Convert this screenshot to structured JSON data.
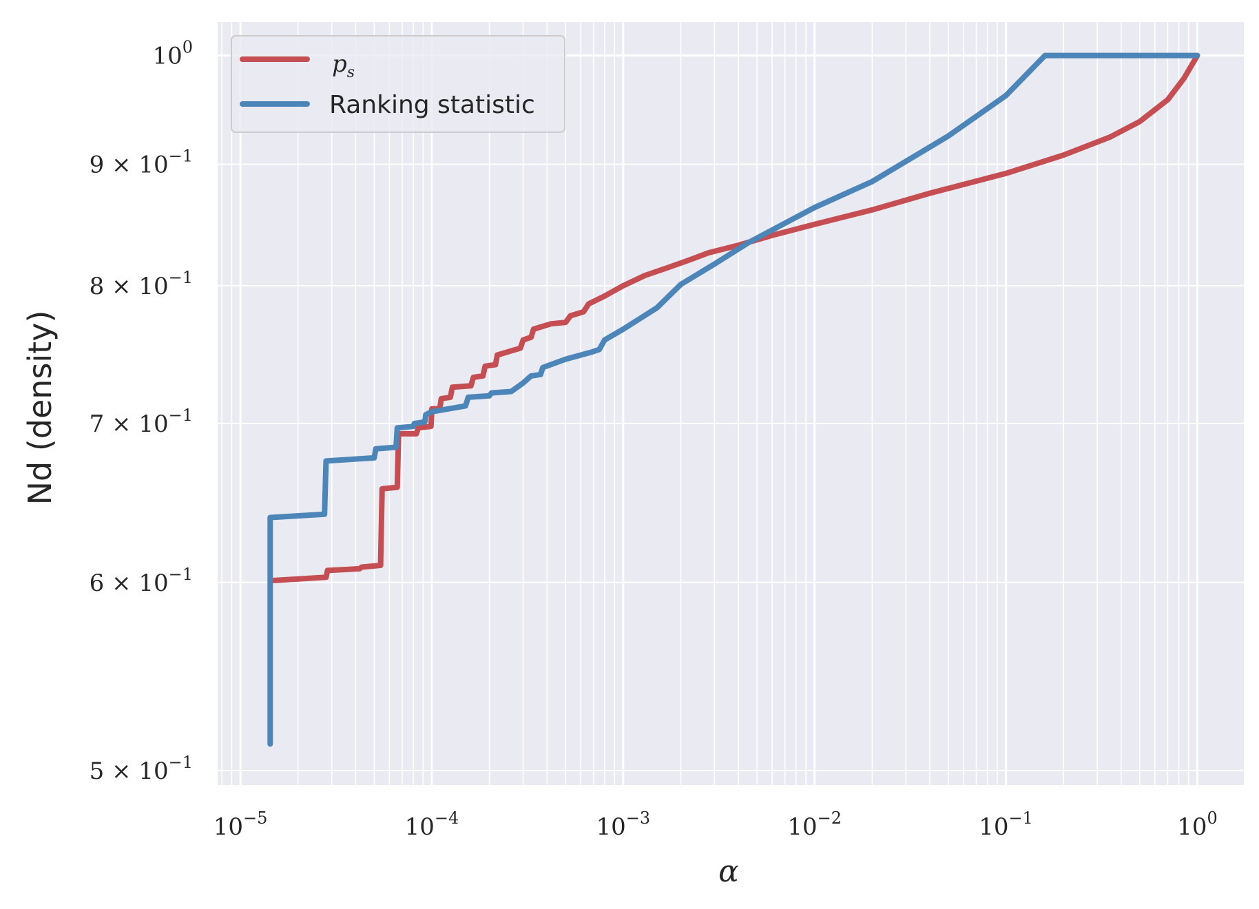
{
  "chart_data": {
    "type": "line",
    "xscale": "log",
    "yscale": "log",
    "xlim": [
      7.6e-06,
      1.75
    ],
    "ylim": [
      0.493,
      1.033
    ],
    "xlabel": "α",
    "ylabel": "Nd (density)",
    "grid": true,
    "legend_position": "top-left",
    "x_ticks": [
      {
        "value": 1e-05,
        "base": "10",
        "exp": "−5"
      },
      {
        "value": 0.0001,
        "base": "10",
        "exp": "−4"
      },
      {
        "value": 0.001,
        "base": "10",
        "exp": "−3"
      },
      {
        "value": 0.01,
        "base": "10",
        "exp": "−2"
      },
      {
        "value": 0.1,
        "base": "10",
        "exp": "−1"
      },
      {
        "value": 1,
        "base": "10",
        "exp": "0"
      }
    ],
    "y_ticks": [
      {
        "value": 1.0,
        "base": "10",
        "exp": "0"
      },
      {
        "value": 0.9,
        "base": "9 × 10",
        "exp": "−1"
      },
      {
        "value": 0.8,
        "base": "8 × 10",
        "exp": "−1"
      },
      {
        "value": 0.7,
        "base": "7 × 10",
        "exp": "−1"
      },
      {
        "value": 0.6,
        "base": "6 × 10",
        "exp": "−1"
      },
      {
        "value": 0.5,
        "base": "5 × 10",
        "exp": "−1"
      }
    ],
    "series": [
      {
        "name_base": "p",
        "name_sub": "s",
        "color": "#c44e52",
        "points": [
          [
            1.43e-05,
            0.601
          ],
          [
            2.8e-05,
            0.603
          ],
          [
            2.85e-05,
            0.607
          ],
          [
            4.2e-05,
            0.608
          ],
          [
            4.3e-05,
            0.609
          ],
          [
            5.4e-05,
            0.61
          ],
          [
            5.5e-05,
            0.657
          ],
          [
            6.6e-05,
            0.658
          ],
          [
            6.7e-05,
            0.693
          ],
          [
            8.3e-05,
            0.693
          ],
          [
            8.5e-05,
            0.697
          ],
          [
            9.9e-05,
            0.698
          ],
          [
            0.0001,
            0.71
          ],
          [
            0.00011,
            0.71
          ],
          [
            0.000112,
            0.717
          ],
          [
            0.000125,
            0.718
          ],
          [
            0.000128,
            0.725
          ],
          [
            0.00016,
            0.726
          ],
          [
            0.000165,
            0.732
          ],
          [
            0.000185,
            0.733
          ],
          [
            0.00019,
            0.74
          ],
          [
            0.000215,
            0.741
          ],
          [
            0.00022,
            0.748
          ],
          [
            0.00029,
            0.753
          ],
          [
            0.0003,
            0.759
          ],
          [
            0.00033,
            0.761
          ],
          [
            0.00034,
            0.767
          ],
          [
            0.00042,
            0.771
          ],
          [
            0.0005,
            0.772
          ],
          [
            0.00053,
            0.777
          ],
          [
            0.00062,
            0.78
          ],
          [
            0.00066,
            0.786
          ],
          [
            0.0008,
            0.792
          ],
          [
            0.001,
            0.8
          ],
          [
            0.0013,
            0.808
          ],
          [
            0.0017,
            0.814
          ],
          [
            0.0022,
            0.82
          ],
          [
            0.0028,
            0.826
          ],
          [
            0.004,
            0.832
          ],
          [
            0.006,
            0.84
          ],
          [
            0.01,
            0.849
          ],
          [
            0.02,
            0.861
          ],
          [
            0.04,
            0.875
          ],
          [
            0.1,
            0.892
          ],
          [
            0.2,
            0.908
          ],
          [
            0.35,
            0.924
          ],
          [
            0.5,
            0.938
          ],
          [
            0.7,
            0.958
          ],
          [
            0.85,
            0.978
          ],
          [
            1.0,
            1.0
          ]
        ]
      },
      {
        "name": "Ranking statistic",
        "color": "#4c85b8",
        "points": [
          [
            1.43e-05,
            0.513
          ],
          [
            1.43e-05,
            0.639
          ],
          [
            2.75e-05,
            0.641
          ],
          [
            2.8e-05,
            0.675
          ],
          [
            5e-05,
            0.677
          ],
          [
            5.1e-05,
            0.683
          ],
          [
            6.5e-05,
            0.684
          ],
          [
            6.6e-05,
            0.697
          ],
          [
            8e-05,
            0.698
          ],
          [
            8.1e-05,
            0.7
          ],
          [
            9.2e-05,
            0.701
          ],
          [
            9.3e-05,
            0.706
          ],
          [
            0.0001,
            0.708
          ],
          [
            0.00015,
            0.712
          ],
          [
            0.000155,
            0.718
          ],
          [
            0.0002,
            0.719
          ],
          [
            0.000205,
            0.721
          ],
          [
            0.00026,
            0.722
          ],
          [
            0.0003,
            0.728
          ],
          [
            0.00033,
            0.733
          ],
          [
            0.00037,
            0.734
          ],
          [
            0.00038,
            0.739
          ],
          [
            0.0005,
            0.745
          ],
          [
            0.00068,
            0.75
          ],
          [
            0.00075,
            0.752
          ],
          [
            0.0008,
            0.759
          ],
          [
            0.001,
            0.767
          ],
          [
            0.0015,
            0.783
          ],
          [
            0.002,
            0.801
          ],
          [
            0.003,
            0.817
          ],
          [
            0.0045,
            0.834
          ],
          [
            0.007,
            0.85
          ],
          [
            0.01,
            0.863
          ],
          [
            0.02,
            0.885
          ],
          [
            0.05,
            0.925
          ],
          [
            0.1,
            0.962
          ],
          [
            0.16,
            1.0
          ],
          [
            1.0,
            1.0
          ]
        ]
      }
    ]
  }
}
